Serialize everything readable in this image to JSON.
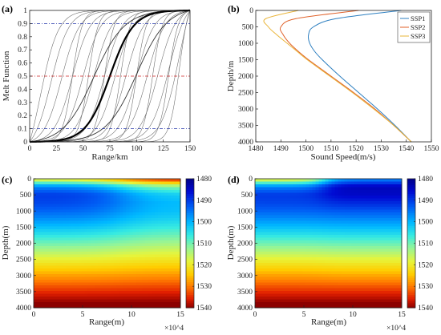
{
  "chart_data": [
    {
      "panel": "(a)",
      "type": "line",
      "xlabel": "Range/km",
      "ylabel": "Melt Function",
      "xlim": [
        0,
        150
      ],
      "ylim": [
        0,
        1
      ],
      "xticks": [
        "0",
        "25",
        "50",
        "75",
        "100",
        "125",
        "150"
      ],
      "yticks": [
        "0",
        "0.1",
        "0.2",
        "0.3",
        "0.4",
        "0.5",
        "0.6",
        "0.7",
        "0.8",
        "0.9",
        "1"
      ],
      "curves": {
        "family": "sigmoid",
        "steepness_set_1": 0.12,
        "steepness_set_2": 0.22,
        "centers_set_1": [
          10,
          20,
          30,
          40,
          50,
          60,
          70,
          80,
          90,
          100,
          110,
          120,
          130,
          140
        ],
        "centers_set_2": [
          40,
          55,
          70,
          85,
          100,
          115,
          130,
          140
        ],
        "highlight_centers": [
          60,
          100
        ],
        "bold_center": 75
      },
      "reference_lines": [
        {
          "y": 0.9,
          "color": "#2233aa",
          "style": "dash-dot"
        },
        {
          "y": 0.5,
          "color": "#cc2222",
          "style": "dash-dot"
        },
        {
          "y": 0.1,
          "color": "#2233aa",
          "style": "dash-dot"
        }
      ]
    },
    {
      "panel": "(b)",
      "type": "line",
      "xlabel": "Sound Speed(m/s)",
      "ylabel": "Depth/m",
      "xlim": [
        1480,
        1550
      ],
      "ylim": [
        0,
        4000
      ],
      "y_inverted": true,
      "xticks": [
        "1480",
        "1490",
        "1500",
        "1510",
        "1520",
        "1530",
        "1540",
        "1550"
      ],
      "yticks": [
        "0",
        "500",
        "1000",
        "1500",
        "2000",
        "2500",
        "3000",
        "3500",
        "4000"
      ],
      "legend_position": "top-right",
      "series": [
        {
          "name": "SSP1",
          "color": "#2d7fc0",
          "depth": [
            0,
            250,
            500,
            750,
            1000,
            1250,
            1500,
            2000,
            2500,
            3000,
            3500,
            4000
          ],
          "speed": [
            1538,
            1512,
            1503,
            1501,
            1501.5,
            1503.5,
            1506.5,
            1513.5,
            1521,
            1528.5,
            1535.5,
            1542
          ]
        },
        {
          "name": "SSP2",
          "color": "#e0622a",
          "depth": [
            0,
            250,
            500,
            750,
            1000,
            1250,
            1500,
            2000,
            2500,
            3000,
            3500,
            4000
          ],
          "speed": [
            1521,
            1496,
            1490,
            1491,
            1493.5,
            1497,
            1501,
            1510,
            1519,
            1527.5,
            1535,
            1542
          ]
        },
        {
          "name": "SSP3",
          "color": "#eab53a",
          "depth": [
            0,
            250,
            500,
            750,
            1000,
            1250,
            1500,
            2000,
            2500,
            3000,
            3500,
            4000
          ],
          "speed": [
            1497,
            1484,
            1485,
            1488.5,
            1492.5,
            1496.5,
            1500.5,
            1509.5,
            1518.5,
            1527,
            1535,
            1542
          ]
        }
      ]
    },
    {
      "panel": "(c)",
      "type": "heatmap",
      "xlabel": "Range(m)",
      "ylabel": "Depth(m)",
      "x_multiplier": "×10^4",
      "xlim": [
        0,
        15
      ],
      "ylim": [
        0,
        4000
      ],
      "y_inverted": true,
      "xticks": [
        "0",
        "5",
        "10",
        "15"
      ],
      "yticks": [
        "0",
        "500",
        "1000",
        "1500",
        "2000",
        "2500",
        "3000",
        "3500",
        "4000"
      ],
      "colorbar": {
        "min": 1480,
        "max": 1540,
        "ticks": [
          "1480",
          "1490",
          "1500",
          "1510",
          "1520",
          "1530",
          "1540"
        ],
        "reversed": true
      },
      "field": {
        "left_profile": "SSP2",
        "right_profile": "SSP1",
        "transition_center": 9,
        "transition_width": 3.5
      }
    },
    {
      "panel": "(d)",
      "type": "heatmap",
      "xlabel": "Range(m)",
      "ylabel": "Depth(m)",
      "x_multiplier": "×10^4",
      "xlim": [
        0,
        15
      ],
      "ylim": [
        0,
        4000
      ],
      "y_inverted": true,
      "xticks": [
        "0",
        "5",
        "10",
        "15"
      ],
      "yticks": [
        "0",
        "500",
        "1000",
        "1500",
        "2000",
        "2500",
        "3000",
        "3500",
        "4000"
      ],
      "colorbar": {
        "min": 1480,
        "max": 1540,
        "ticks": [
          "1480",
          "1490",
          "1500",
          "1510",
          "1520",
          "1530",
          "1540"
        ],
        "reversed": true
      },
      "field": {
        "left_profile": "SSP2",
        "right_profile": "SSP3",
        "transition_center": 7,
        "transition_width": 1.6
      }
    }
  ]
}
